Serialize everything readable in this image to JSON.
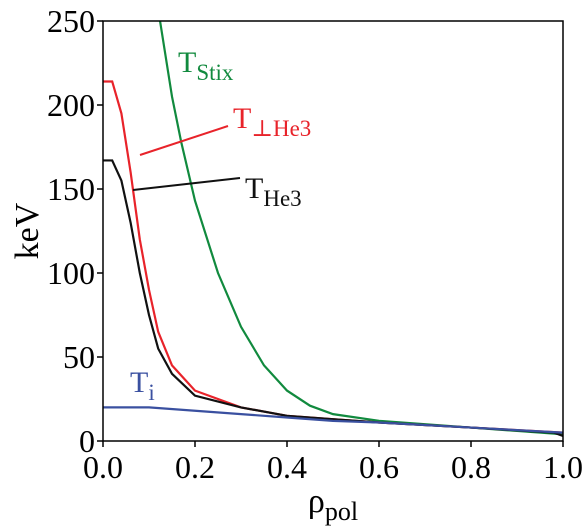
{
  "chart_data": {
    "type": "line",
    "x_label": {
      "main": "ρ",
      "sub": "pol"
    },
    "y_label": "keV",
    "xlim": [
      0,
      1
    ],
    "ylim": [
      0,
      250
    ],
    "xticks": [
      {
        "value": 0,
        "label": "0.0"
      },
      0.2,
      0.4,
      0.6,
      0.8,
      {
        "value": 1,
        "label": "1.0"
      }
    ],
    "yticks": [
      0,
      50,
      100,
      150,
      200,
      250
    ],
    "series": [
      {
        "label": {
          "main": "T",
          "sub": "Stix"
        },
        "color": "#118a3e",
        "x": [
          0.124,
          0.15,
          0.17,
          0.2,
          0.25,
          0.3,
          0.35,
          0.4,
          0.45,
          0.5,
          0.6,
          0.7,
          0.8,
          0.9,
          1.0
        ],
        "values": [
          250,
          205,
          178,
          143,
          100,
          68,
          45,
          30,
          21,
          16,
          12,
          10,
          8,
          6,
          4
        ]
      },
      {
        "label": {
          "main": "T",
          "sub": "⊥He3"
        },
        "color": "#e8232a",
        "x": [
          0,
          0.02,
          0.04,
          0.06,
          0.08,
          0.1,
          0.12,
          0.15,
          0.2,
          0.3,
          0.4,
          0.5,
          0.6,
          0.8,
          1.0
        ],
        "values": [
          214,
          214,
          195,
          160,
          120,
          90,
          65,
          45,
          30,
          20,
          15,
          13,
          11,
          8,
          5
        ]
      },
      {
        "label": {
          "main": "T",
          "sub": "He3"
        },
        "color": "#111111",
        "x": [
          0,
          0.02,
          0.04,
          0.06,
          0.08,
          0.1,
          0.12,
          0.15,
          0.2,
          0.3,
          0.4,
          0.5,
          0.6,
          0.8,
          0.98,
          1.0
        ],
        "values": [
          167,
          167,
          155,
          130,
          100,
          75,
          55,
          40,
          27,
          20,
          15,
          13,
          11,
          8,
          5,
          3
        ]
      },
      {
        "label": {
          "main": "T",
          "sub": "i"
        },
        "color": "#3a50a0",
        "x": [
          0,
          0.1,
          0.2,
          0.3,
          0.4,
          0.5,
          0.6,
          0.8,
          1.0
        ],
        "values": [
          20,
          20,
          18,
          16,
          14,
          12,
          11,
          8,
          5
        ]
      }
    ]
  }
}
